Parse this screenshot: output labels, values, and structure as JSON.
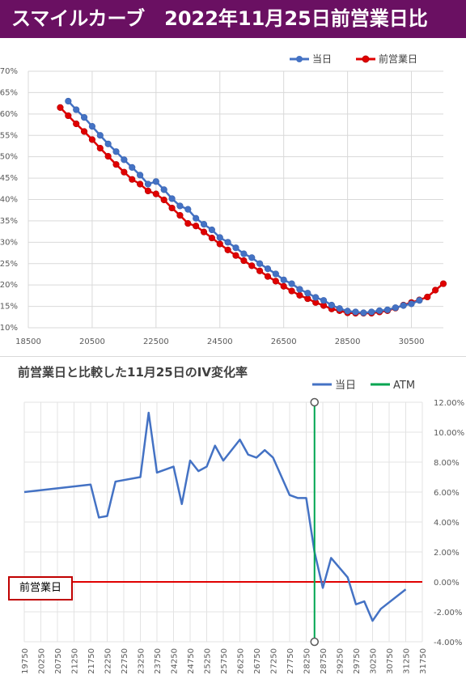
{
  "header": {
    "title": "スマイルカーブ　2022年11月25日前営業日比",
    "bg_color": "#6a1062"
  },
  "chart_data": [
    {
      "type": "line",
      "title": "",
      "xlabel": "",
      "ylabel": "",
      "xlim": [
        18500,
        31500
      ],
      "ylim": [
        10,
        70
      ],
      "x_ticks": [
        "18500",
        "20500",
        "22500",
        "24500",
        "26500",
        "28500",
        "30500"
      ],
      "y_ticks": [
        "10%",
        "15%",
        "20%",
        "25%",
        "30%",
        "35%",
        "40%",
        "45%",
        "50%",
        "55%",
        "60%",
        "65%",
        "70%"
      ],
      "grid": true,
      "legend_position": "top-right",
      "series": [
        {
          "name": "当日",
          "color": "#4472c4",
          "x": [
            19750,
            20000,
            20250,
            20500,
            20750,
            21000,
            21250,
            21500,
            21750,
            22000,
            22250,
            22500,
            22750,
            23000,
            23250,
            23500,
            23750,
            24000,
            24250,
            24500,
            24750,
            25000,
            25250,
            25500,
            25750,
            26000,
            26250,
            26500,
            26750,
            27000,
            27250,
            27500,
            27750,
            28000,
            28250,
            28500,
            28750,
            29000,
            29250,
            29500,
            29750,
            30000,
            30250,
            30500,
            30750
          ],
          "values": [
            63.0,
            61.0,
            59.2,
            57.1,
            55.0,
            53.0,
            51.2,
            49.3,
            47.5,
            45.7,
            43.6,
            44.2,
            42.3,
            40.2,
            38.5,
            37.7,
            35.6,
            34.2,
            32.9,
            31.1,
            30.0,
            28.7,
            27.3,
            26.4,
            25.0,
            23.8,
            22.6,
            21.2,
            20.3,
            19.0,
            18.1,
            17.1,
            16.4,
            15.3,
            14.5,
            13.9,
            13.7,
            13.5,
            13.7,
            14.0,
            14.2,
            14.7,
            15.2,
            15.6,
            16.4
          ]
        },
        {
          "name": "前営業日",
          "color": "#e00000",
          "x": [
            19500,
            19750,
            20000,
            20250,
            20500,
            20750,
            21000,
            21250,
            21500,
            21750,
            22000,
            22250,
            22500,
            22750,
            23000,
            23250,
            23500,
            23750,
            24000,
            24250,
            24500,
            24750,
            25000,
            25250,
            25500,
            25750,
            26000,
            26250,
            26500,
            26750,
            27000,
            27250,
            27500,
            27750,
            28000,
            28250,
            28500,
            28750,
            29000,
            29250,
            29500,
            29750,
            30000,
            30250,
            30500,
            30750,
            31000,
            31250,
            31500
          ],
          "values": [
            61.5,
            59.6,
            57.7,
            55.9,
            54.0,
            52.0,
            50.1,
            48.2,
            46.4,
            44.7,
            43.6,
            42.0,
            41.3,
            39.9,
            38.0,
            36.3,
            34.4,
            33.8,
            32.4,
            31.0,
            29.6,
            28.2,
            26.9,
            25.7,
            24.5,
            23.3,
            22.0,
            20.9,
            19.7,
            18.6,
            17.6,
            16.8,
            15.9,
            15.2,
            14.4,
            14.0,
            13.5,
            13.4,
            13.4,
            13.4,
            13.7,
            14.0,
            14.6,
            15.3,
            15.9,
            16.5,
            17.2,
            18.8,
            20.3
          ]
        }
      ]
    },
    {
      "type": "line",
      "title": "前営業日と比較した11月25日のIV変化率",
      "xlabel": "",
      "ylabel": "",
      "ylim": [
        -4,
        12
      ],
      "x_ticks": [
        "19750",
        "20250",
        "20750",
        "21250",
        "21750",
        "22250",
        "22750",
        "23250",
        "23750",
        "24250",
        "24750",
        "25250",
        "25750",
        "26250",
        "26750",
        "27250",
        "27750",
        "28250",
        "28750",
        "29250",
        "29750",
        "30250",
        "30750",
        "31250",
        "31750"
      ],
      "y_ticks": [
        "-4.00%",
        "-2.00%",
        "0.00%",
        "2.00%",
        "4.00%",
        "6.00%",
        "8.00%",
        "10.00%",
        "12.00%"
      ],
      "grid": true,
      "legend_position": "top-right",
      "series": [
        {
          "name": "当日",
          "color": "#4472c4",
          "x": [
            19750,
            21750,
            22000,
            22250,
            22500,
            23250,
            23500,
            23750,
            24250,
            24500,
            24750,
            25000,
            25250,
            25500,
            25750,
            26250,
            26500,
            26750,
            27000,
            27250,
            27750,
            28000,
            28250,
            28500,
            28750,
            29000,
            29500,
            29750,
            30000,
            30250,
            30500,
            31250
          ],
          "values": [
            6.0,
            6.5,
            4.3,
            4.4,
            6.7,
            7.0,
            11.3,
            7.3,
            7.7,
            5.2,
            8.1,
            7.4,
            7.7,
            9.1,
            8.1,
            9.5,
            8.5,
            8.3,
            8.8,
            8.3,
            5.8,
            5.6,
            5.6,
            2.0,
            -0.4,
            1.6,
            0.3,
            -1.5,
            -1.3,
            -2.6,
            -1.8,
            -0.5
          ]
        },
        {
          "name": "ATM",
          "color": "#00a550",
          "x": [
            28500
          ],
          "values": [
            12
          ]
        }
      ],
      "reference_line": {
        "label": "前営業日",
        "value": 0,
        "color": "#e00000"
      }
    }
  ]
}
